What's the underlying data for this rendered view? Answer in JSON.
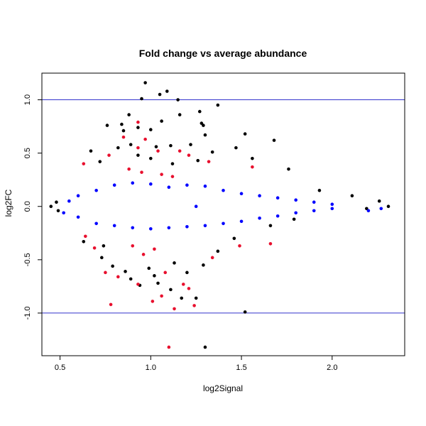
{
  "chart_data": {
    "type": "scatter",
    "title": "Fold change vs average abundance",
    "xlabel": "log2Signal",
    "ylabel": "log2FC",
    "xlim": [
      0.4,
      2.4
    ],
    "ylim": [
      -1.4,
      1.25
    ],
    "xticks": [
      0.5,
      1.0,
      1.5,
      2.0
    ],
    "xtick_labels": [
      "0.5",
      "1.0",
      "1.5",
      "2.0"
    ],
    "yticks": [
      -1.0,
      -0.5,
      0.0,
      0.5,
      1.0
    ],
    "ytick_labels": [
      "-1.0",
      "-0.5",
      "0.0",
      "0.5",
      "1.0"
    ],
    "grid": false,
    "legend": "none",
    "reference_lines": {
      "horizontal": [
        1.0,
        -1.0
      ],
      "color": "#3333cc"
    },
    "colors": {
      "all": "#000000",
      "highlight_low": "#0000ff",
      "highlight_sig": "#e8102e"
    },
    "series": [
      {
        "color": "#000000",
        "points": [
          [
            0.97,
            1.16
          ],
          [
            1.09,
            1.08
          ],
          [
            1.05,
            1.05
          ],
          [
            0.95,
            1.01
          ],
          [
            1.15,
            1.0
          ],
          [
            1.37,
            0.95
          ],
          [
            1.27,
            0.89
          ],
          [
            0.88,
            0.86
          ],
          [
            1.16,
            0.86
          ],
          [
            0.84,
            0.77
          ],
          [
            1.28,
            0.78
          ],
          [
            0.76,
            0.76
          ],
          [
            1.29,
            0.76
          ],
          [
            1.06,
            0.8
          ],
          [
            0.93,
            0.74
          ],
          [
            1.0,
            0.72
          ],
          [
            0.85,
            0.71
          ],
          [
            1.3,
            0.67
          ],
          [
            1.52,
            0.68
          ],
          [
            1.68,
            0.62
          ],
          [
            0.89,
            0.58
          ],
          [
            0.82,
            0.55
          ],
          [
            1.03,
            0.56
          ],
          [
            1.11,
            0.57
          ],
          [
            1.22,
            0.58
          ],
          [
            0.67,
            0.52
          ],
          [
            1.34,
            0.51
          ],
          [
            1.47,
            0.55
          ],
          [
            0.93,
            0.48
          ],
          [
            1.0,
            0.45
          ],
          [
            1.26,
            0.43
          ],
          [
            1.56,
            0.45
          ],
          [
            0.72,
            0.42
          ],
          [
            1.12,
            0.4
          ],
          [
            1.76,
            0.35
          ],
          [
            1.93,
            0.15
          ],
          [
            2.11,
            0.1
          ],
          [
            2.26,
            0.05
          ],
          [
            2.31,
            0.0
          ],
          [
            2.19,
            -0.02
          ],
          [
            0.45,
            0.0
          ],
          [
            0.49,
            -0.04
          ],
          [
            0.48,
            0.04
          ],
          [
            1.66,
            -0.18
          ],
          [
            1.79,
            -0.12
          ],
          [
            0.63,
            -0.33
          ],
          [
            0.73,
            -0.48
          ],
          [
            0.79,
            -0.56
          ],
          [
            0.86,
            -0.61
          ],
          [
            0.89,
            -0.68
          ],
          [
            0.94,
            -0.74
          ],
          [
            1.04,
            -0.72
          ],
          [
            1.11,
            -0.78
          ],
          [
            1.17,
            -0.86
          ],
          [
            1.25,
            -0.86
          ],
          [
            1.02,
            -0.65
          ],
          [
            1.2,
            -0.62
          ],
          [
            1.29,
            -0.55
          ],
          [
            1.52,
            -0.99
          ],
          [
            1.3,
            -1.32
          ],
          [
            0.99,
            -0.58
          ],
          [
            1.13,
            -0.53
          ],
          [
            1.37,
            -0.42
          ],
          [
            0.74,
            -0.37
          ],
          [
            1.46,
            -0.3
          ]
        ]
      },
      {
        "color": "#0000ff",
        "points": [
          [
            0.6,
            0.1
          ],
          [
            0.7,
            0.15
          ],
          [
            0.8,
            0.2
          ],
          [
            0.9,
            0.22
          ],
          [
            1.0,
            0.21
          ],
          [
            1.1,
            0.18
          ],
          [
            1.2,
            0.2
          ],
          [
            1.3,
            0.19
          ],
          [
            1.4,
            0.15
          ],
          [
            1.5,
            0.12
          ],
          [
            1.6,
            0.1
          ],
          [
            1.7,
            0.08
          ],
          [
            1.8,
            0.06
          ],
          [
            1.9,
            0.04
          ],
          [
            2.0,
            0.02
          ],
          [
            0.6,
            -0.1
          ],
          [
            0.7,
            -0.16
          ],
          [
            0.8,
            -0.18
          ],
          [
            0.9,
            -0.2
          ],
          [
            1.0,
            -0.21
          ],
          [
            1.1,
            -0.2
          ],
          [
            1.2,
            -0.19
          ],
          [
            1.3,
            -0.18
          ],
          [
            1.4,
            -0.16
          ],
          [
            1.5,
            -0.14
          ],
          [
            1.6,
            -0.11
          ],
          [
            1.7,
            -0.09
          ],
          [
            1.8,
            -0.06
          ],
          [
            1.9,
            -0.04
          ],
          [
            2.0,
            -0.02
          ],
          [
            2.2,
            -0.04
          ],
          [
            2.27,
            -0.02
          ],
          [
            0.55,
            0.05
          ],
          [
            0.52,
            -0.06
          ],
          [
            1.25,
            0.0
          ]
        ]
      },
      {
        "color": "#e8102e",
        "points": [
          [
            0.93,
            0.79
          ],
          [
            0.85,
            0.65
          ],
          [
            0.97,
            0.63
          ],
          [
            0.93,
            0.55
          ],
          [
            1.04,
            0.52
          ],
          [
            1.16,
            0.52
          ],
          [
            0.77,
            0.48
          ],
          [
            1.32,
            0.42
          ],
          [
            0.63,
            0.4
          ],
          [
            1.21,
            0.48
          ],
          [
            0.88,
            0.35
          ],
          [
            0.95,
            0.32
          ],
          [
            1.06,
            0.3
          ],
          [
            1.12,
            0.28
          ],
          [
            1.56,
            0.37
          ],
          [
            0.64,
            -0.28
          ],
          [
            0.69,
            -0.39
          ],
          [
            1.49,
            -0.37
          ],
          [
            0.9,
            -0.37
          ],
          [
            1.02,
            -0.4
          ],
          [
            1.34,
            -0.48
          ],
          [
            0.75,
            -0.62
          ],
          [
            0.82,
            -0.66
          ],
          [
            1.08,
            -0.62
          ],
          [
            1.21,
            -0.77
          ],
          [
            1.18,
            -0.73
          ],
          [
            0.93,
            -0.73
          ],
          [
            1.01,
            -0.89
          ],
          [
            1.06,
            -0.84
          ],
          [
            0.78,
            -0.92
          ],
          [
            1.13,
            -0.96
          ],
          [
            1.24,
            -0.93
          ],
          [
            1.1,
            -1.32
          ],
          [
            1.66,
            -0.35
          ],
          [
            0.96,
            -0.45
          ]
        ]
      }
    ]
  }
}
